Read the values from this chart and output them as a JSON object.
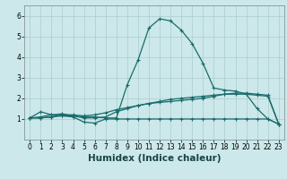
{
  "title": "",
  "xlabel": "Humidex (Indice chaleur)",
  "ylabel": "",
  "bg_color": "#cce8ea",
  "grid_color": "#aacccc",
  "line_color": "#1a6b6b",
  "x_values": [
    0,
    1,
    2,
    3,
    4,
    5,
    6,
    7,
    8,
    9,
    10,
    11,
    12,
    13,
    14,
    15,
    16,
    17,
    18,
    19,
    20,
    21,
    22,
    23
  ],
  "line1": [
    1.05,
    1.35,
    1.2,
    1.15,
    1.1,
    0.85,
    0.8,
    1.0,
    1.0,
    1.0,
    1.0,
    1.0,
    1.0,
    1.0,
    1.0,
    1.0,
    1.0,
    1.0,
    1.0,
    1.0,
    1.0,
    1.0,
    1.0,
    0.75
  ],
  "line2": [
    1.05,
    1.1,
    1.2,
    1.25,
    1.15,
    1.05,
    1.05,
    1.1,
    1.35,
    1.5,
    1.65,
    1.75,
    1.8,
    1.85,
    1.9,
    1.95,
    2.0,
    2.1,
    2.2,
    2.2,
    2.2,
    2.15,
    2.1,
    0.75
  ],
  "line3": [
    1.05,
    1.05,
    1.1,
    1.2,
    1.2,
    1.15,
    1.2,
    1.3,
    1.45,
    1.55,
    1.65,
    1.75,
    1.85,
    1.95,
    2.0,
    2.05,
    2.1,
    2.15,
    2.2,
    2.25,
    2.25,
    2.2,
    2.15,
    0.75
  ],
  "line4": [
    1.05,
    1.05,
    1.1,
    1.15,
    1.15,
    1.1,
    1.1,
    1.05,
    1.05,
    2.65,
    3.85,
    5.4,
    5.85,
    5.75,
    5.3,
    4.65,
    3.7,
    2.5,
    2.4,
    2.35,
    2.2,
    1.5,
    1.0,
    0.75
  ],
  "ylim": [
    0.0,
    6.5
  ],
  "xlim": [
    -0.5,
    23.5
  ],
  "yticks": [
    1,
    2,
    3,
    4,
    5,
    6
  ],
  "xticks": [
    0,
    1,
    2,
    3,
    4,
    5,
    6,
    7,
    8,
    9,
    10,
    11,
    12,
    13,
    14,
    15,
    16,
    17,
    18,
    19,
    20,
    21,
    22,
    23
  ],
  "tick_fontsize": 5.5,
  "xlabel_fontsize": 7.5,
  "marker_size": 3.5,
  "line_width": 0.9
}
